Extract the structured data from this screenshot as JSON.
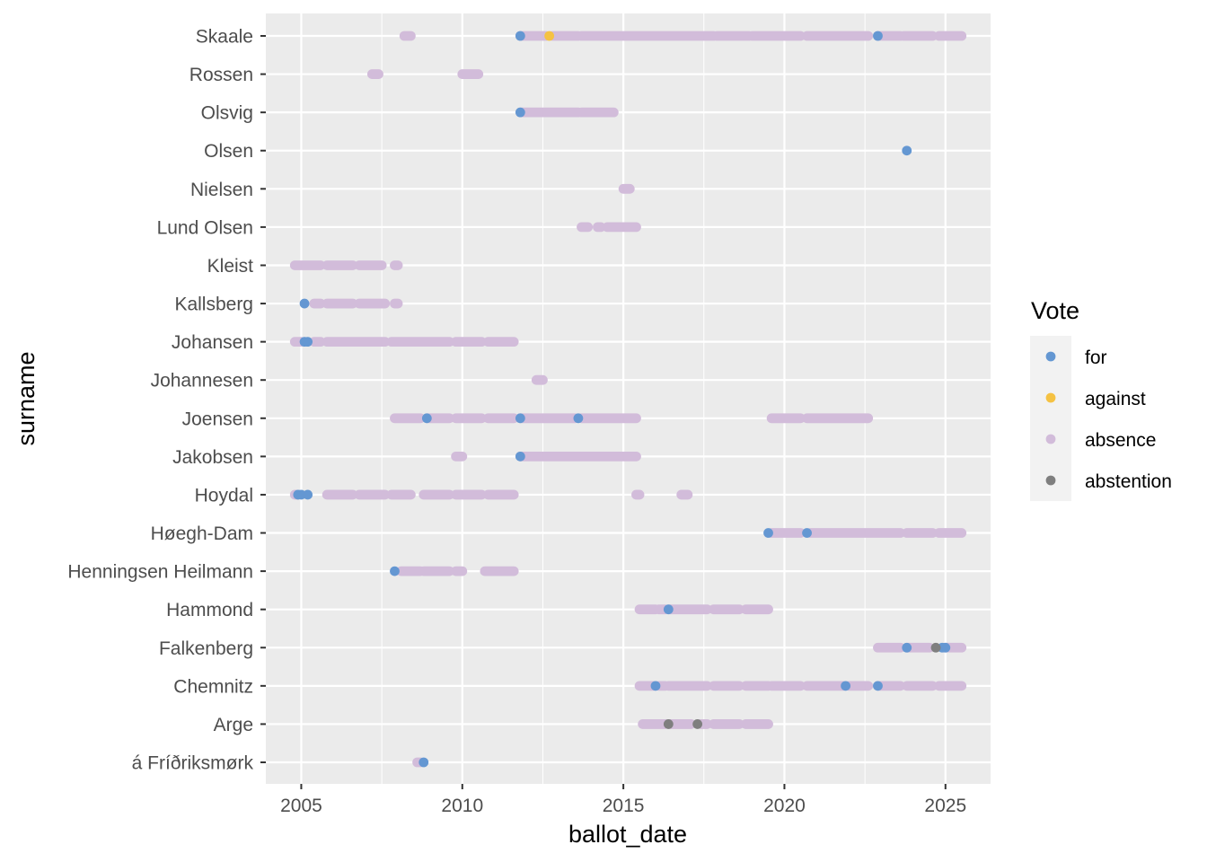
{
  "chart_data": {
    "type": "scatter",
    "xlabel": "ballot_date",
    "ylabel": "surname",
    "xlim": [
      2003.9,
      2026.4
    ],
    "x_ticks": [
      2005,
      2010,
      2015,
      2020,
      2025
    ],
    "x_tick_labels": [
      "2005",
      "2010",
      "2015",
      "2020",
      "2025"
    ],
    "categories": [
      "Skaale",
      "Rossen",
      "Olsvig",
      "Olsen",
      "Nielsen",
      "Lund Olsen",
      "Kleist",
      "Kallsberg",
      "Johansen",
      "Johannesen",
      "Joensen",
      "Jakobsen",
      "Hoydal",
      "Høegh-Dam",
      "Henningsen Heilmann",
      "Hammond",
      "Falkenberg",
      "Chemnitz",
      "Arge",
      "á Fríðriksmørk"
    ],
    "legend": {
      "title": "Vote",
      "position": "right",
      "entries": [
        {
          "label": "for",
          "color": "#6497D2"
        },
        {
          "label": "against",
          "color": "#F5C243"
        },
        {
          "label": "absence",
          "color": "#D2BCDA"
        },
        {
          "label": "abstention",
          "color": "#7F7F7F"
        }
      ]
    },
    "grid": true,
    "panel_background": "#EBEBEB",
    "series": [
      {
        "name": "absence",
        "color": "#D2BCDA",
        "segments": [
          [
            "Skaale",
            2008.2,
            2008.4
          ],
          [
            "Skaale",
            2011.8,
            2012.6
          ],
          [
            "Skaale",
            2012.8,
            2013.6
          ],
          [
            "Skaale",
            2013.7,
            2017.8
          ],
          [
            "Skaale",
            2017.9,
            2018.9
          ],
          [
            "Skaale",
            2019.0,
            2020.5
          ],
          [
            "Skaale",
            2020.7,
            2022.6
          ],
          [
            "Skaale",
            2022.9,
            2023.6
          ],
          [
            "Skaale",
            2023.7,
            2024.6
          ],
          [
            "Skaale",
            2024.8,
            2025.5
          ],
          [
            "Rossen",
            2007.2,
            2007.4
          ],
          [
            "Rossen",
            2010.0,
            2010.5
          ],
          [
            "Olsvig",
            2011.8,
            2013.6
          ],
          [
            "Olsvig",
            2013.7,
            2014.7
          ],
          [
            "Nielsen",
            2015.0,
            2015.2
          ],
          [
            "Lund Olsen",
            2013.7,
            2013.9
          ],
          [
            "Lund Olsen",
            2014.2,
            2014.3
          ],
          [
            "Lund Olsen",
            2014.5,
            2015.4
          ],
          [
            "Kleist",
            2004.8,
            2005.6
          ],
          [
            "Kleist",
            2005.8,
            2006.6
          ],
          [
            "Kleist",
            2006.8,
            2007.5
          ],
          [
            "Kleist",
            2007.9,
            2008.0
          ],
          [
            "Kallsberg",
            2005.4,
            2005.6
          ],
          [
            "Kallsberg",
            2005.8,
            2006.6
          ],
          [
            "Kallsberg",
            2006.8,
            2007.6
          ],
          [
            "Kallsberg",
            2007.9,
            2008.0
          ],
          [
            "Johansen",
            2004.8,
            2005.0
          ],
          [
            "Johansen",
            2005.4,
            2005.6
          ],
          [
            "Johansen",
            2005.8,
            2007.6
          ],
          [
            "Johansen",
            2007.8,
            2009.6
          ],
          [
            "Johansen",
            2009.8,
            2010.6
          ],
          [
            "Johansen",
            2010.8,
            2011.6
          ],
          [
            "Johannesen",
            2012.3,
            2012.5
          ],
          [
            "Joensen",
            2007.9,
            2008.7
          ],
          [
            "Joensen",
            2008.9,
            2009.6
          ],
          [
            "Joensen",
            2009.8,
            2010.6
          ],
          [
            "Joensen",
            2010.8,
            2011.6
          ],
          [
            "Joensen",
            2011.8,
            2013.5
          ],
          [
            "Joensen",
            2013.7,
            2015.4
          ],
          [
            "Joensen",
            2019.6,
            2020.5
          ],
          [
            "Joensen",
            2020.7,
            2022.6
          ],
          [
            "Jakobsen",
            2009.8,
            2010.0
          ],
          [
            "Jakobsen",
            2011.8,
            2015.4
          ],
          [
            "Hoydal",
            2004.8,
            2004.9
          ],
          [
            "Hoydal",
            2005.8,
            2006.6
          ],
          [
            "Hoydal",
            2006.8,
            2007.6
          ],
          [
            "Hoydal",
            2007.8,
            2008.4
          ],
          [
            "Hoydal",
            2008.8,
            2009.6
          ],
          [
            "Hoydal",
            2009.8,
            2010.6
          ],
          [
            "Hoydal",
            2010.8,
            2011.6
          ],
          [
            "Hoydal",
            2015.4,
            2015.5
          ],
          [
            "Hoydal",
            2016.8,
            2017.0
          ],
          [
            "Høegh-Dam",
            2019.6,
            2020.5
          ],
          [
            "Høegh-Dam",
            2020.8,
            2023.6
          ],
          [
            "Høegh-Dam",
            2023.8,
            2024.6
          ],
          [
            "Høegh-Dam",
            2024.8,
            2025.5
          ],
          [
            "Henningsen Heilmann",
            2008.1,
            2008.7
          ],
          [
            "Henningsen Heilmann",
            2008.8,
            2009.6
          ],
          [
            "Henningsen Heilmann",
            2009.8,
            2010.0
          ],
          [
            "Henningsen Heilmann",
            2010.7,
            2011.6
          ],
          [
            "Hammond",
            2015.5,
            2016.0
          ],
          [
            "Hammond",
            2016.1,
            2016.3
          ],
          [
            "Hammond",
            2016.4,
            2017.6
          ],
          [
            "Hammond",
            2017.8,
            2018.6
          ],
          [
            "Hammond",
            2018.8,
            2019.5
          ],
          [
            "Falkenberg",
            2022.9,
            2023.6
          ],
          [
            "Falkenberg",
            2023.8,
            2024.5
          ],
          [
            "Falkenberg",
            2025.0,
            2025.5
          ],
          [
            "Chemnitz",
            2015.5,
            2016.0
          ],
          [
            "Chemnitz",
            2016.1,
            2016.3
          ],
          [
            "Chemnitz",
            2016.4,
            2017.6
          ],
          [
            "Chemnitz",
            2017.8,
            2018.6
          ],
          [
            "Chemnitz",
            2018.8,
            2019.5
          ],
          [
            "Chemnitz",
            2019.6,
            2020.5
          ],
          [
            "Chemnitz",
            2020.7,
            2021.9
          ],
          [
            "Chemnitz",
            2022.0,
            2022.6
          ],
          [
            "Chemnitz",
            2022.9,
            2023.6
          ],
          [
            "Chemnitz",
            2023.8,
            2024.6
          ],
          [
            "Chemnitz",
            2024.8,
            2025.5
          ],
          [
            "Arge",
            2015.6,
            2016.3
          ],
          [
            "Arge",
            2016.4,
            2017.1
          ],
          [
            "Arge",
            2017.4,
            2017.6
          ],
          [
            "Arge",
            2017.8,
            2018.6
          ],
          [
            "Arge",
            2018.8,
            2019.5
          ],
          [
            "á Fríðriksmørk",
            2008.6,
            2008.7
          ]
        ]
      },
      {
        "name": "for",
        "color": "#6497D2",
        "points": [
          [
            "Skaale",
            2011.8
          ],
          [
            "Skaale",
            2022.9
          ],
          [
            "Olsvig",
            2011.8
          ],
          [
            "Olsen",
            2023.8
          ],
          [
            "Kallsberg",
            2005.1
          ],
          [
            "Johansen",
            2005.1
          ],
          [
            "Johansen",
            2005.2
          ],
          [
            "Joensen",
            2008.9
          ],
          [
            "Joensen",
            2011.8
          ],
          [
            "Joensen",
            2013.6
          ],
          [
            "Jakobsen",
            2011.8
          ],
          [
            "Hoydal",
            2004.9
          ],
          [
            "Hoydal",
            2005.0
          ],
          [
            "Hoydal",
            2005.2
          ],
          [
            "Høegh-Dam",
            2019.5
          ],
          [
            "Høegh-Dam",
            2020.7
          ],
          [
            "Henningsen Heilmann",
            2007.9
          ],
          [
            "Hammond",
            2016.4
          ],
          [
            "Falkenberg",
            2023.8
          ],
          [
            "Falkenberg",
            2024.9
          ],
          [
            "Falkenberg",
            2025.0
          ],
          [
            "Chemnitz",
            2016.0
          ],
          [
            "Chemnitz",
            2021.9
          ],
          [
            "Chemnitz",
            2022.9
          ],
          [
            "á Fríðriksmørk",
            2008.8
          ]
        ]
      },
      {
        "name": "against",
        "color": "#F5C243",
        "points": [
          [
            "Skaale",
            2012.7
          ]
        ]
      },
      {
        "name": "abstention",
        "color": "#7F7F7F",
        "points": [
          [
            "Falkenberg",
            2024.7
          ],
          [
            "Arge",
            2017.3
          ],
          [
            "Arge",
            2016.4
          ]
        ]
      }
    ]
  }
}
